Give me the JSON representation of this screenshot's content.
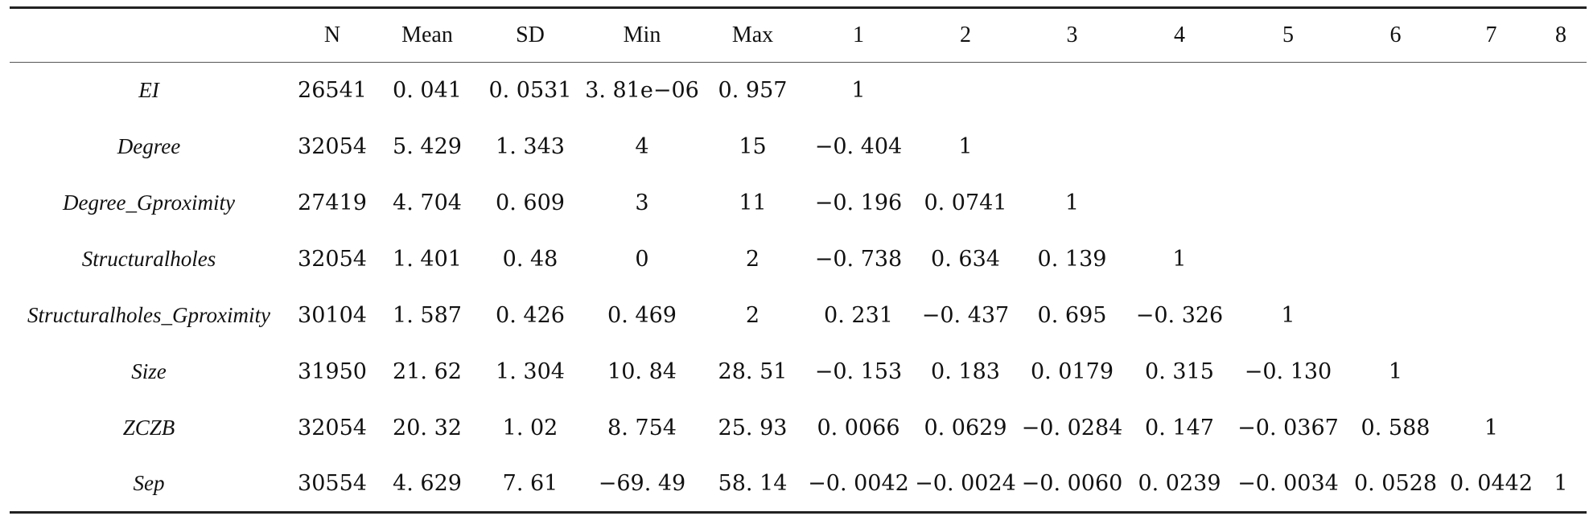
{
  "table": {
    "headers": [
      "",
      "N",
      "Mean",
      "SD",
      "Min",
      "Max",
      "1",
      "2",
      "3",
      "4",
      "5",
      "6",
      "7",
      "8"
    ],
    "rows": [
      {
        "name": "EI",
        "cells": [
          "26541",
          "0. 041",
          "0. 0531",
          "3. 81e−06",
          "0. 957",
          "1",
          "",
          "",
          "",
          "",
          "",
          "",
          ""
        ]
      },
      {
        "name": "Degree",
        "cells": [
          "32054",
          "5. 429",
          "1. 343",
          "4",
          "15",
          "−0. 404",
          "1",
          "",
          "",
          "",
          "",
          "",
          ""
        ]
      },
      {
        "name": "Degree_Gproximity",
        "cells": [
          "27419",
          "4. 704",
          "0. 609",
          "3",
          "11",
          "−0. 196",
          "0. 0741",
          "1",
          "",
          "",
          "",
          "",
          ""
        ]
      },
      {
        "name": "Structuralholes",
        "cells": [
          "32054",
          "1. 401",
          "0. 48",
          "0",
          "2",
          "−0. 738",
          "0. 634",
          "0. 139",
          "1",
          "",
          "",
          "",
          ""
        ]
      },
      {
        "name": "Structuralholes_Gproximity",
        "cells": [
          "30104",
          "1. 587",
          "0. 426",
          "0. 469",
          "2",
          "0. 231",
          "−0. 437",
          "0. 695",
          "−0. 326",
          "1",
          "",
          "",
          ""
        ]
      },
      {
        "name": "Size",
        "cells": [
          "31950",
          "21. 62",
          "1. 304",
          "10. 84",
          "28. 51",
          "−0. 153",
          "0. 183",
          "0. 0179",
          "0. 315",
          "−0. 130",
          "1",
          "",
          ""
        ]
      },
      {
        "name": "ZCZB",
        "cells": [
          "32054",
          "20. 32",
          "1. 02",
          "8. 754",
          "25. 93",
          "0. 0066",
          "0. 0629",
          "−0. 0284",
          "0. 147",
          "−0. 0367",
          "0. 588",
          "1",
          ""
        ]
      },
      {
        "name": "Sep",
        "cells": [
          "30554",
          "4. 629",
          "7. 61",
          "−69. 49",
          "58. 14",
          "−0. 0042",
          "−0. 0024",
          "−0. 0060",
          "0. 0239",
          "−0. 0034",
          "0. 0528",
          "0. 0442",
          "1"
        ]
      }
    ]
  }
}
